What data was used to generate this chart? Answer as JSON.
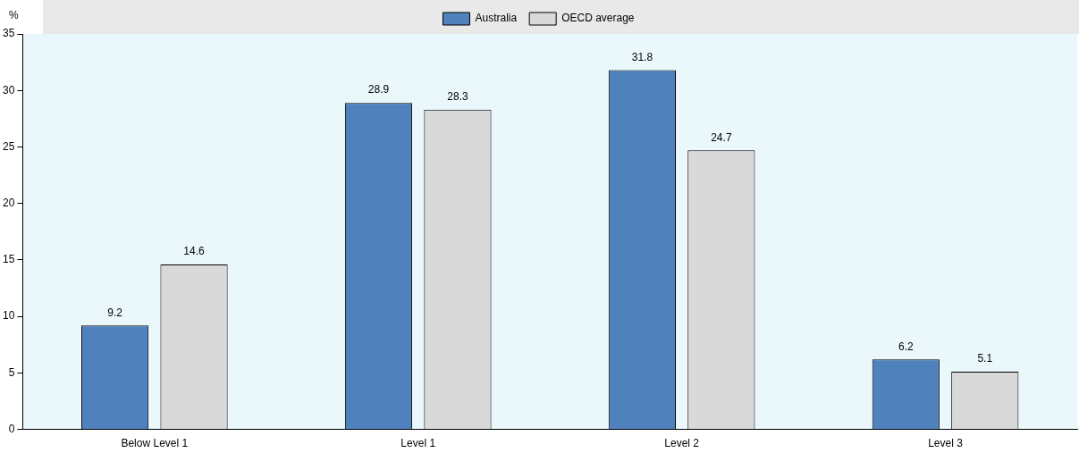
{
  "chart_data": {
    "type": "bar",
    "ylabel": "%",
    "categories": [
      "Below Level 1",
      "Level 1",
      "Level 2",
      "Level 3"
    ],
    "series": [
      {
        "name": "Australia",
        "color": "#4f81bd",
        "values": [
          9.2,
          28.9,
          31.8,
          6.2
        ]
      },
      {
        "name": "OECD average",
        "color": "#d9d9d9",
        "values": [
          14.6,
          28.3,
          24.7,
          5.1
        ]
      }
    ],
    "ylim": [
      0,
      35
    ],
    "yticks": [
      0,
      5,
      10,
      15,
      20,
      25,
      30,
      35
    ],
    "grid": false,
    "legend": "top",
    "data_labels": true
  }
}
